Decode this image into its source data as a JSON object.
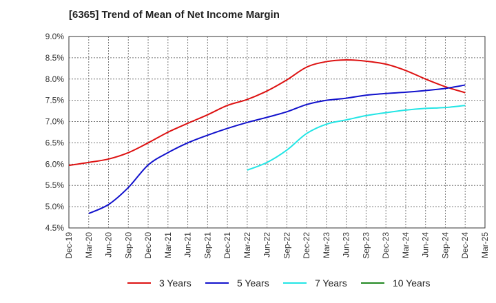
{
  "chart_data": {
    "type": "line",
    "title": "[6365]  Trend of Mean of Net Income Margin",
    "xlabel": "",
    "ylabel": "",
    "ylim": [
      4.5,
      9.0
    ],
    "y_ticks": [
      "4.5%",
      "5.0%",
      "5.5%",
      "6.0%",
      "6.5%",
      "7.0%",
      "7.5%",
      "8.0%",
      "8.5%",
      "9.0%"
    ],
    "x_ticks": [
      "Dec-19",
      "Mar-20",
      "Jun-20",
      "Sep-20",
      "Dec-20",
      "Mar-21",
      "Jun-21",
      "Sep-21",
      "Dec-21",
      "Mar-22",
      "Jun-22",
      "Sep-22",
      "Dec-22",
      "Mar-23",
      "Jun-23",
      "Sep-23",
      "Dec-23",
      "Mar-24",
      "Jun-24",
      "Sep-24",
      "Dec-24",
      "Mar-25"
    ],
    "grid": true,
    "legend_position": "bottom",
    "series": [
      {
        "name": "3 Years",
        "color": "#dd1111",
        "start": "Dec-19",
        "values": [
          5.97,
          6.04,
          6.12,
          6.27,
          6.5,
          6.75,
          6.96,
          7.16,
          7.38,
          7.52,
          7.72,
          7.98,
          8.28,
          8.41,
          8.45,
          8.42,
          8.35,
          8.2,
          8.0,
          7.82,
          7.68
        ]
      },
      {
        "name": "5 Years",
        "color": "#1111cc",
        "start": "Mar-20",
        "values": [
          4.84,
          5.05,
          5.45,
          5.98,
          6.27,
          6.5,
          6.68,
          6.84,
          6.98,
          7.1,
          7.23,
          7.4,
          7.5,
          7.55,
          7.62,
          7.66,
          7.69,
          7.73,
          7.78,
          7.86
        ]
      },
      {
        "name": "7 Years",
        "color": "#22e5e5",
        "start": "Mar-22",
        "values": [
          5.86,
          6.04,
          6.33,
          6.72,
          6.94,
          7.04,
          7.14,
          7.21,
          7.27,
          7.31,
          7.33,
          7.38
        ]
      },
      {
        "name": "10 Years",
        "color": "#228822",
        "start": "Dec-24",
        "values": []
      }
    ]
  }
}
